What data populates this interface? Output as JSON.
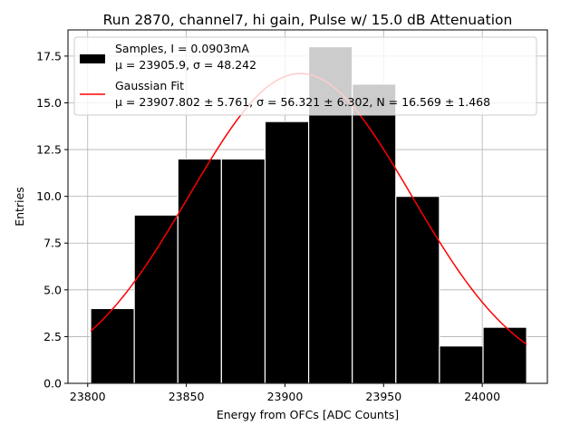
{
  "chart_data": {
    "type": "bar",
    "title": "Run 2870, channel7, hi gain, Pulse w/ 15.0 dB Attenuation",
    "xlabel": "Energy from OFCs [ADC Counts]",
    "ylabel": "Entries",
    "xlim": [
      23790,
      24033
    ],
    "ylim": [
      0,
      18.9
    ],
    "grid": true,
    "xticks": [
      23800,
      23850,
      23900,
      23950,
      24000
    ],
    "xtick_labels": [
      "23800",
      "23850",
      "23900",
      "23950",
      "24000"
    ],
    "yticks": [
      0,
      2.5,
      5,
      7.5,
      10,
      12.5,
      15,
      17.5
    ],
    "ytick_labels": [
      "0.0",
      "2.5",
      "5.0",
      "7.5",
      "10.0",
      "12.5",
      "15.0",
      "17.5"
    ],
    "bins": [
      {
        "x0": 23801.5,
        "x1": 23823.6,
        "count": 4
      },
      {
        "x0": 23823.6,
        "x1": 23845.7,
        "count": 9
      },
      {
        "x0": 23845.7,
        "x1": 23867.8,
        "count": 12
      },
      {
        "x0": 23867.8,
        "x1": 23889.9,
        "count": 12
      },
      {
        "x0": 23889.9,
        "x1": 23912.0,
        "count": 14
      },
      {
        "x0": 23912.0,
        "x1": 23934.1,
        "count": 18
      },
      {
        "x0": 23934.1,
        "x1": 23956.2,
        "count": 16
      },
      {
        "x0": 23956.2,
        "x1": 23978.3,
        "count": 10
      },
      {
        "x0": 23978.3,
        "x1": 24000.4,
        "count": 2
      },
      {
        "x0": 24000.4,
        "x1": 24022.5,
        "count": 3
      }
    ],
    "fit": {
      "mu": 23907.802,
      "sigma": 56.321,
      "N": 16.569,
      "x_range": [
        23801.5,
        24022.5
      ]
    },
    "legend": {
      "placement": "top",
      "samples_line1": "Samples, I = 0.0903mA",
      "samples_line2": "μ = 23905.9, σ = 48.242",
      "fit_line1": "Gaussian Fit",
      "fit_line2": "μ = 23907.802 ± 5.761, σ = 56.321 ± 6.302, N = 16.569 ± 1.468"
    },
    "colors": {
      "bars": "#000000",
      "bar_edge": "#ffffff",
      "fit": "#ff0000",
      "grid": "#b0b0b0"
    }
  }
}
